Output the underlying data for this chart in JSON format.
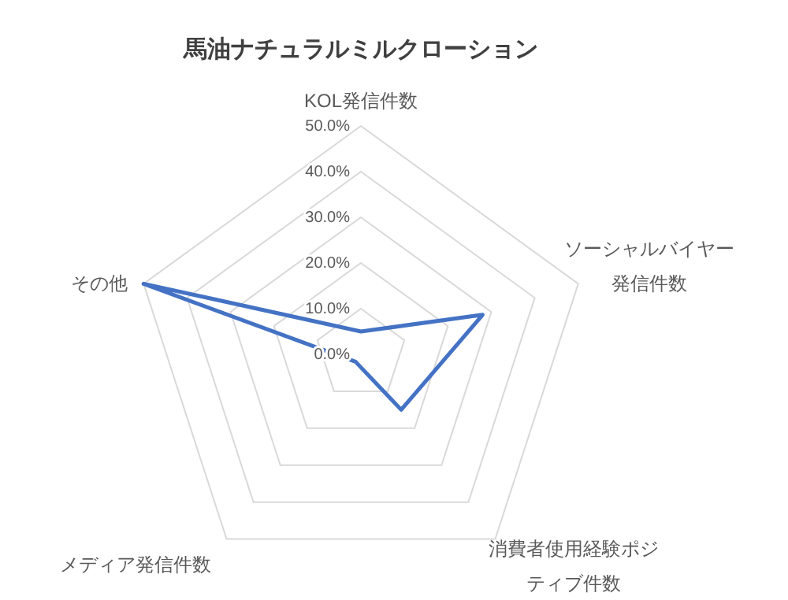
{
  "chart_data": {
    "type": "radar",
    "title": "馬油ナチュラルミルクローション",
    "categories": [
      "KOL発信件数",
      "ソーシャルバイヤー発信件数",
      "消費者使用経験ポジティブ件数",
      "メディア発信件数",
      "その他"
    ],
    "series": [
      {
        "color": "#4472c4",
        "values": [
          5,
          28,
          15,
          2,
          50
        ]
      }
    ],
    "ylim": [
      0,
      50
    ],
    "yticks": [
      {
        "value": 0,
        "label": "0.0%"
      },
      {
        "value": 10,
        "label": "10.0%"
      },
      {
        "value": 20,
        "label": "20.0%"
      },
      {
        "value": 30,
        "label": "30.0%"
      },
      {
        "value": 40,
        "label": "40.0%"
      },
      {
        "value": 50,
        "label": "50.0%"
      }
    ],
    "grid": true,
    "marker": "none",
    "line_style": "solid"
  }
}
